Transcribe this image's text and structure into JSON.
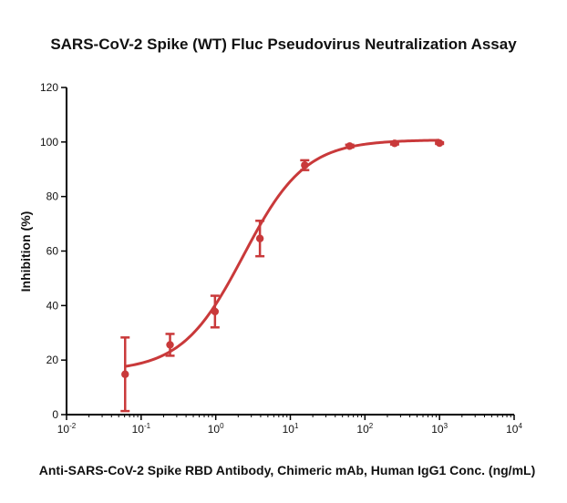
{
  "chart_data": {
    "type": "scatter",
    "title": "SARS-CoV-2 Spike (WT) Fluc Pseudovirus Neutralization Assay",
    "xlabel": "Anti-SARS-CoV-2 Spike RBD Antibody, Chimeric mAb, Human IgG1 Conc. (ng/mL)",
    "ylabel": "Inhibition (%)",
    "x_scale": "log",
    "xlim": [
      0.01,
      10000
    ],
    "ylim": [
      0,
      120
    ],
    "x_ticks": [
      {
        "base": "10",
        "exp": "-2",
        "value": 0.01
      },
      {
        "base": "10",
        "exp": "-1",
        "value": 0.1
      },
      {
        "base": "10",
        "exp": "0",
        "value": 1
      },
      {
        "base": "10",
        "exp": "1",
        "value": 10
      },
      {
        "base": "10",
        "exp": "2",
        "value": 100
      },
      {
        "base": "10",
        "exp": "3",
        "value": 1000
      },
      {
        "base": "10",
        "exp": "4",
        "value": 10000
      }
    ],
    "y_ticks": [
      "0",
      "20",
      "40",
      "60",
      "80",
      "100",
      "120"
    ],
    "grid": false,
    "color": "#c9393a",
    "series": [
      {
        "points": [
          {
            "x": 0.061,
            "y": 14.8,
            "err": 13.5
          },
          {
            "x": 0.244,
            "y": 25.6,
            "err": 4.0
          },
          {
            "x": 0.977,
            "y": 37.8,
            "err": 5.8
          },
          {
            "x": 3.91,
            "y": 64.6,
            "err": 6.5
          },
          {
            "x": 15.6,
            "y": 91.5,
            "err": 1.8
          },
          {
            "x": 62.5,
            "y": 98.5,
            "err": 0.5
          },
          {
            "x": 250,
            "y": 99.5,
            "err": 0.4
          },
          {
            "x": 1000,
            "y": 99.6,
            "err": 0.3
          }
        ],
        "fit": {
          "bottom": 15.9,
          "top": 100.8,
          "ec50": 2.35,
          "hill": 1.05
        }
      }
    ]
  }
}
